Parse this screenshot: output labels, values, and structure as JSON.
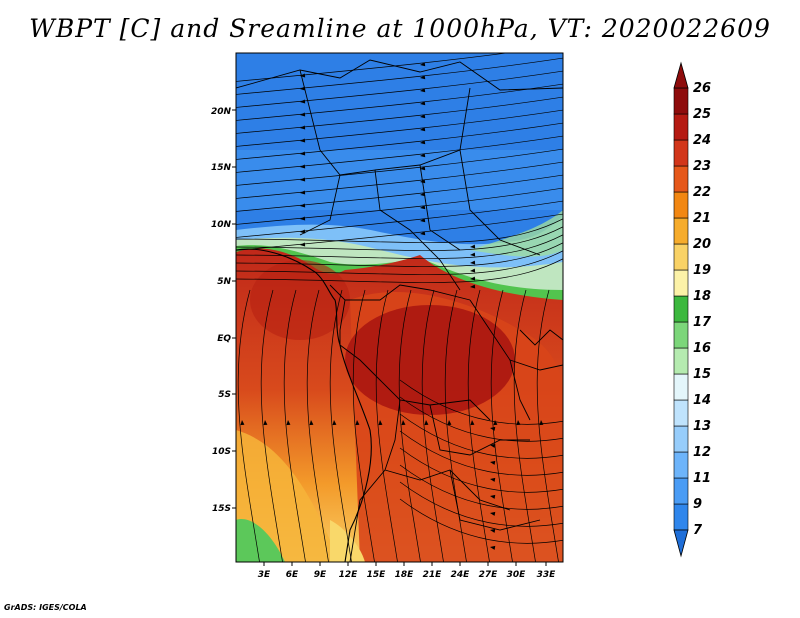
{
  "title": "WBPT [C] and Sreamline at 1000hPa, VT: 2020022609",
  "credit": "GrADS: IGES/COLA",
  "map": {
    "lat_labels": [
      "20N",
      "15N",
      "10N",
      "5N",
      "EQ",
      "5S",
      "10S",
      "15S"
    ],
    "lon_labels": [
      "3E",
      "6E",
      "9E",
      "12E",
      "15E",
      "18E",
      "21E",
      "24E",
      "27E",
      "30E",
      "33E"
    ]
  },
  "colorbar": {
    "labels": [
      "7",
      "9",
      "11",
      "12",
      "13",
      "14",
      "15",
      "16",
      "17",
      "18",
      "19",
      "20",
      "21",
      "22",
      "23",
      "24",
      "25",
      "26"
    ],
    "colors": [
      "#1e6ed8",
      "#2f86ec",
      "#4a9cf5",
      "#6db4fa",
      "#97cdfb",
      "#bfe3fd",
      "#e4f6fb",
      "#b5ebb0",
      "#7cd67a",
      "#3cb83e",
      "#fcf2a8",
      "#f9d266",
      "#f6ac2c",
      "#f28712",
      "#e6581a",
      "#d2361a",
      "#b51a12",
      "#8e0c0c"
    ]
  }
}
